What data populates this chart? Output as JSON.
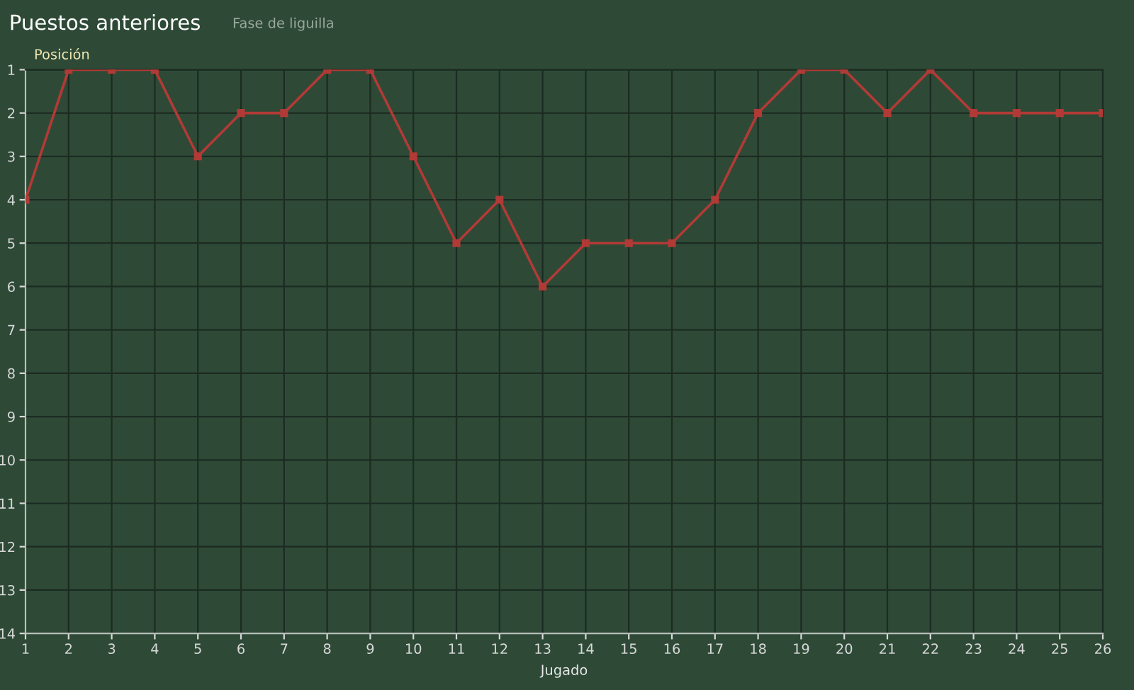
{
  "chart_data": {
    "type": "line",
    "title": "Puestos anteriores",
    "annotations": [
      "Fase de liguilla"
    ],
    "xlabel": "Jugado",
    "ylabel": "Posición",
    "x": [
      1,
      2,
      3,
      4,
      5,
      6,
      7,
      8,
      9,
      10,
      11,
      12,
      13,
      14,
      15,
      16,
      17,
      18,
      19,
      20,
      21,
      22,
      23,
      24,
      25,
      26
    ],
    "series": [
      {
        "color": "#b23a36",
        "values": [
          4,
          1,
          1,
          1,
          3,
          2,
          2,
          1,
          1,
          3,
          5,
          4,
          6,
          5,
          5,
          5,
          4,
          2,
          1,
          1,
          2,
          1,
          2,
          2,
          2,
          2
        ]
      }
    ],
    "xlim": [
      1,
      26
    ],
    "xticks": [
      1,
      2,
      3,
      4,
      5,
      6,
      7,
      8,
      9,
      10,
      11,
      12,
      13,
      14,
      15,
      16,
      17,
      18,
      19,
      20,
      21,
      22,
      23,
      24,
      25,
      26
    ],
    "ylim": [
      14,
      1
    ],
    "yticks": [
      1,
      2,
      3,
      4,
      5,
      6,
      7,
      8,
      9,
      10,
      11,
      12,
      13,
      14
    ],
    "grid": true,
    "marker": "square",
    "line_style": "solid",
    "legend": false
  }
}
